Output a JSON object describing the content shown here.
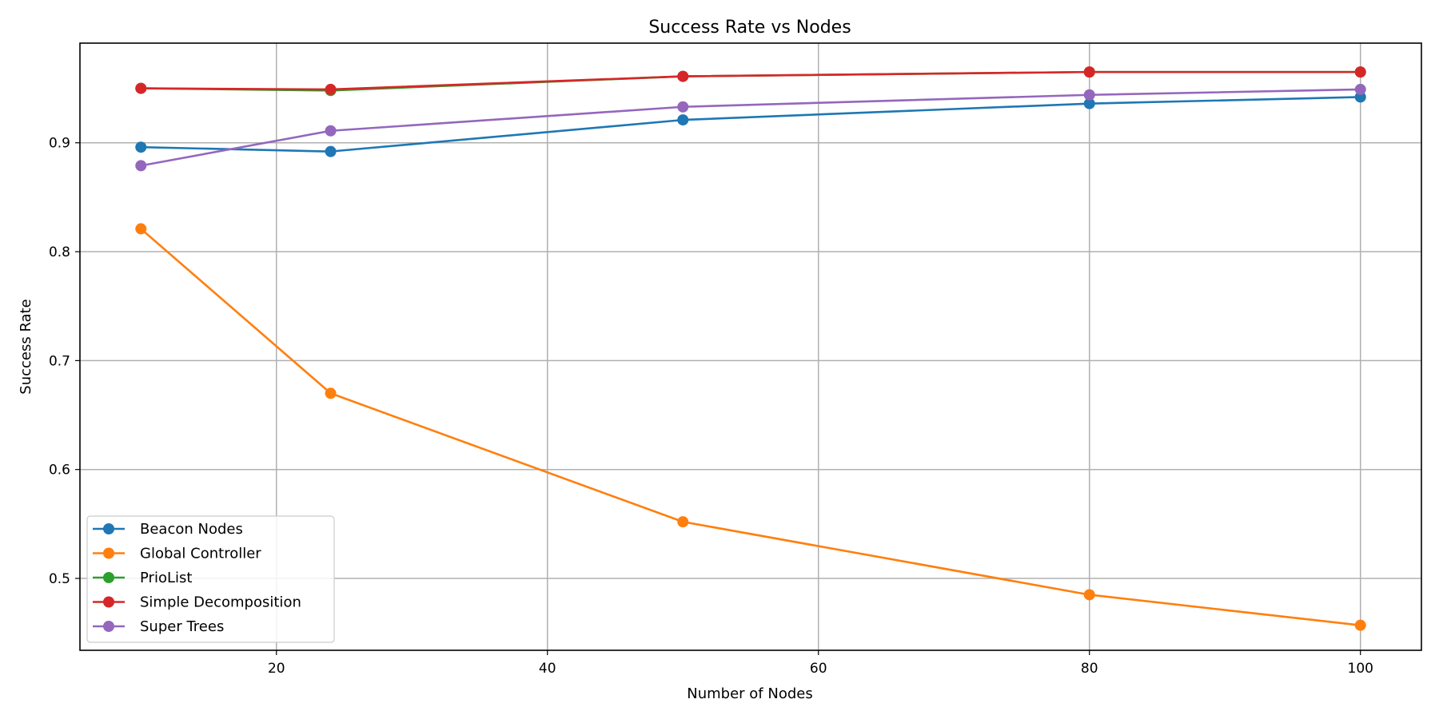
{
  "chart_data": {
    "type": "line",
    "title": "Success Rate vs Nodes",
    "xlabel": "Number of Nodes",
    "ylabel": "Success Rate",
    "x": [
      10,
      24,
      50,
      80,
      100
    ],
    "xlim": [
      5.5,
      104.5
    ],
    "ylim": [
      0.434,
      0.9915
    ],
    "xticks": [
      20,
      40,
      60,
      80,
      100
    ],
    "yticks": [
      0.5,
      0.6,
      0.7,
      0.8,
      0.9
    ],
    "ytick_labels": [
      "0.5",
      "0.6",
      "0.7",
      "0.8",
      "0.9"
    ],
    "grid": true,
    "legend_position": "lower-left",
    "series": [
      {
        "name": "Beacon Nodes",
        "color": "#1f77b4",
        "values": [
          0.896,
          0.892,
          0.921,
          0.936,
          0.942
        ]
      },
      {
        "name": "Global Controller",
        "color": "#ff7f0e",
        "values": [
          0.821,
          0.67,
          0.552,
          0.485,
          0.457
        ]
      },
      {
        "name": "PrioList",
        "color": "#2ca02c",
        "values": [
          0.95,
          0.948,
          0.961,
          0.965,
          0.965
        ]
      },
      {
        "name": "Simple Decomposition",
        "color": "#d62728",
        "values": [
          0.95,
          0.949,
          0.961,
          0.965,
          0.965
        ]
      },
      {
        "name": "Super Trees",
        "color": "#9467bd",
        "values": [
          0.879,
          0.911,
          0.933,
          0.944,
          0.949
        ]
      }
    ]
  }
}
